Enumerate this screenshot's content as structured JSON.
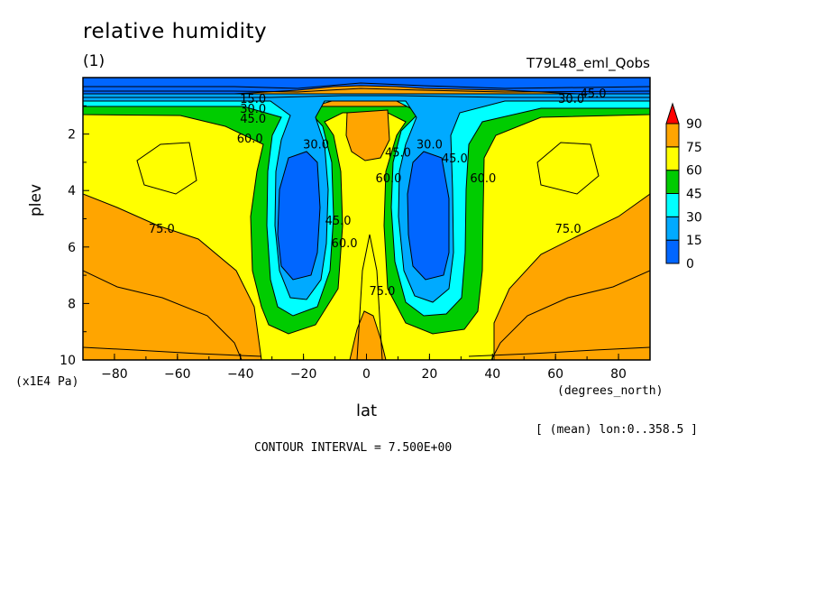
{
  "header": {
    "title": "relative humidity",
    "subtitle": "(1)",
    "run_name": "T79L48_eml_Qobs"
  },
  "footer": {
    "y_unit": "(x1E4 Pa)",
    "x_unit": "(degrees_north)",
    "mean_info": "[ (mean) lon:0..358.5 ]",
    "contour_interval": "CONTOUR INTERVAL = 7.500E+00"
  },
  "colors": {
    "c0_15": "#0066ff",
    "c15_30": "#00aaff",
    "c30_45": "#00ffff",
    "c45_60": "#00cc00",
    "c60_75": "#ffff00",
    "c75_90": "#ffa500",
    "over_90": "#ff0000"
  },
  "chart_data": {
    "type": "contour",
    "title": "relative humidity",
    "xlabel": "lat",
    "ylabel": "plev",
    "x_range": [
      -90,
      90
    ],
    "y_range": [
      10,
      0
    ],
    "x_ticks": [
      "−80",
      "−60",
      "−40",
      "−20",
      "0",
      "20",
      "40",
      "60",
      "80"
    ],
    "y_ticks": [
      "2",
      "4",
      "6",
      "8",
      "10"
    ],
    "colorbar": {
      "levels": [
        "0",
        "15",
        "30",
        "45",
        "60",
        "75",
        "90"
      ],
      "colors": [
        "#0066ff",
        "#00aaff",
        "#00ffff",
        "#00cc00",
        "#ffff00",
        "#ffa500"
      ],
      "extend_max_color": "#ff0000"
    },
    "contour_labels": [
      {
        "text": "15.0",
        "lat": -36,
        "plev": 0.9
      },
      {
        "text": "30.0",
        "lat": -36,
        "plev": 1.25
      },
      {
        "text": "45.0",
        "lat": -36,
        "plev": 1.6
      },
      {
        "text": "60.0",
        "lat": -37,
        "plev": 2.3
      },
      {
        "text": "30.0",
        "lat": -16,
        "plev": 2.5
      },
      {
        "text": "45.0",
        "lat": -9,
        "plev": 5.2
      },
      {
        "text": "60.0",
        "lat": -7,
        "plev": 6.0
      },
      {
        "text": "60.0",
        "lat": 7,
        "plev": 3.7
      },
      {
        "text": "45.0",
        "lat": 10,
        "plev": 2.8
      },
      {
        "text": "30.0",
        "lat": 20,
        "plev": 2.5
      },
      {
        "text": "45.0",
        "lat": 28,
        "plev": 3.0
      },
      {
        "text": "60.0",
        "lat": 37,
        "plev": 3.7
      },
      {
        "text": "75.0",
        "lat": -65,
        "plev": 5.5
      },
      {
        "text": "75.0",
        "lat": 5,
        "plev": 7.7
      },
      {
        "text": "75.0",
        "lat": 64,
        "plev": 5.5
      },
      {
        "text": "30.0",
        "lat": 65,
        "plev": 0.9
      },
      {
        "text": "45.0",
        "lat": 72,
        "plev": 0.7
      }
    ]
  }
}
